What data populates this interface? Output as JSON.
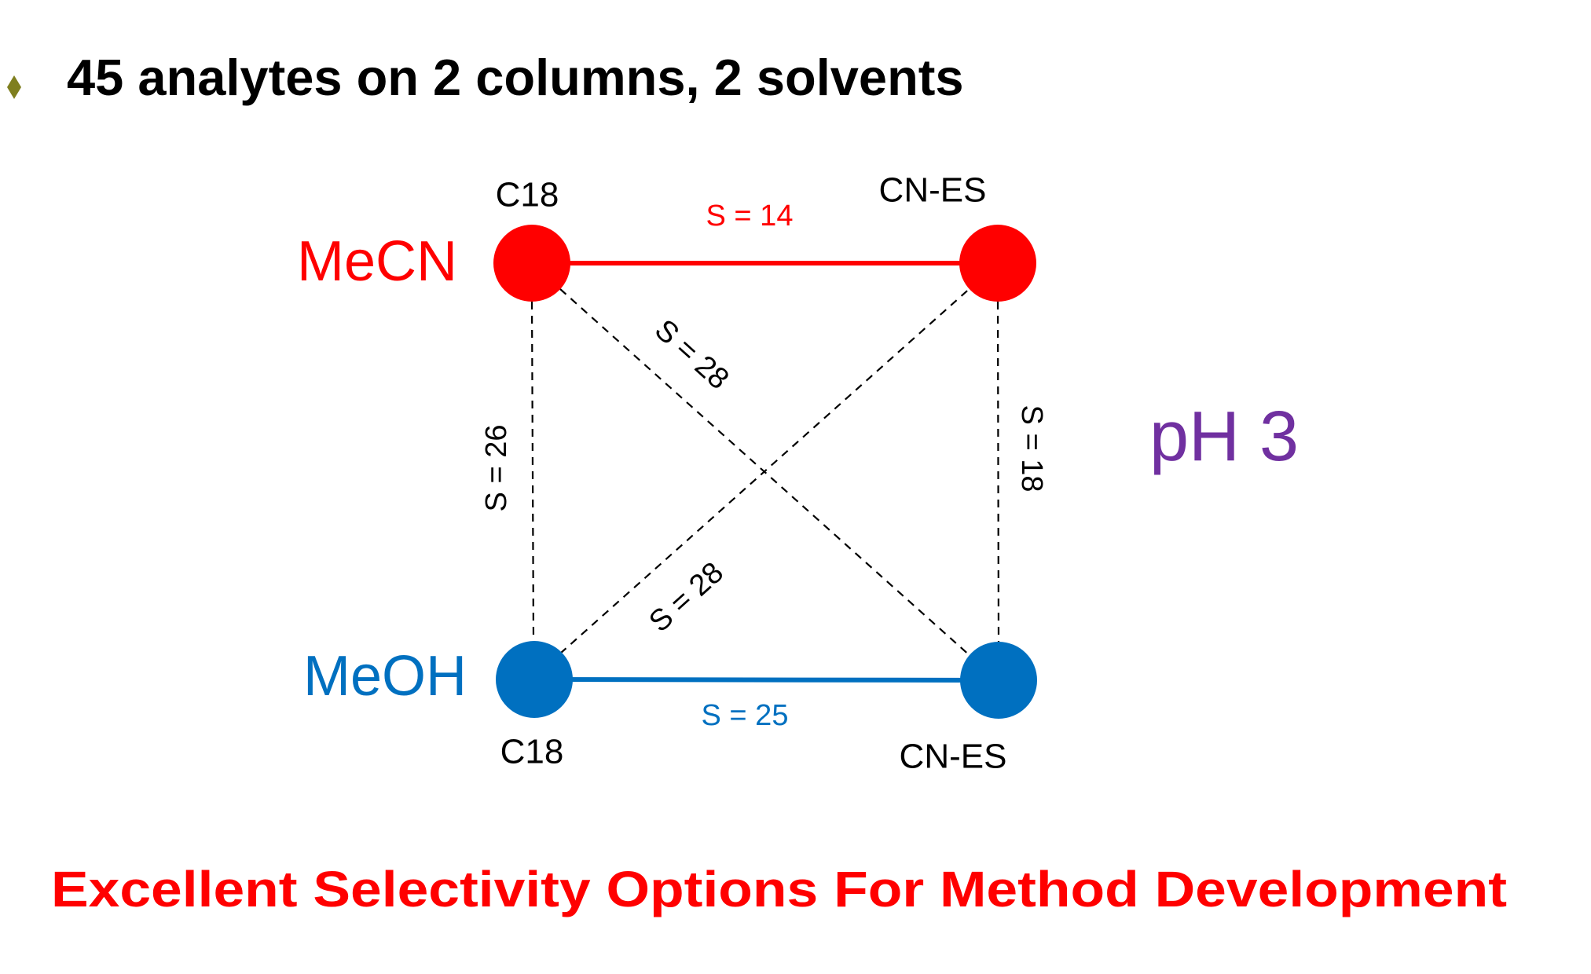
{
  "header": {
    "title": "45 analytes on 2 columns, 2 solvents"
  },
  "solvents": [
    "MeCN",
    "MeOH"
  ],
  "nodes": [
    {
      "label": "C18"
    },
    {
      "label": "CN-ES"
    },
    {
      "label": "C18"
    },
    {
      "label": "CN-ES"
    }
  ],
  "edges": [
    {
      "label": "S = 14"
    },
    {
      "label": "S = 25"
    },
    {
      "label": "S = 26"
    },
    {
      "label": "S = 18"
    },
    {
      "label": "S = 28"
    },
    {
      "label": "S = 28"
    }
  ],
  "condition": "pH 3",
  "footer": "Excellent Selectivity Options For Method Development"
}
